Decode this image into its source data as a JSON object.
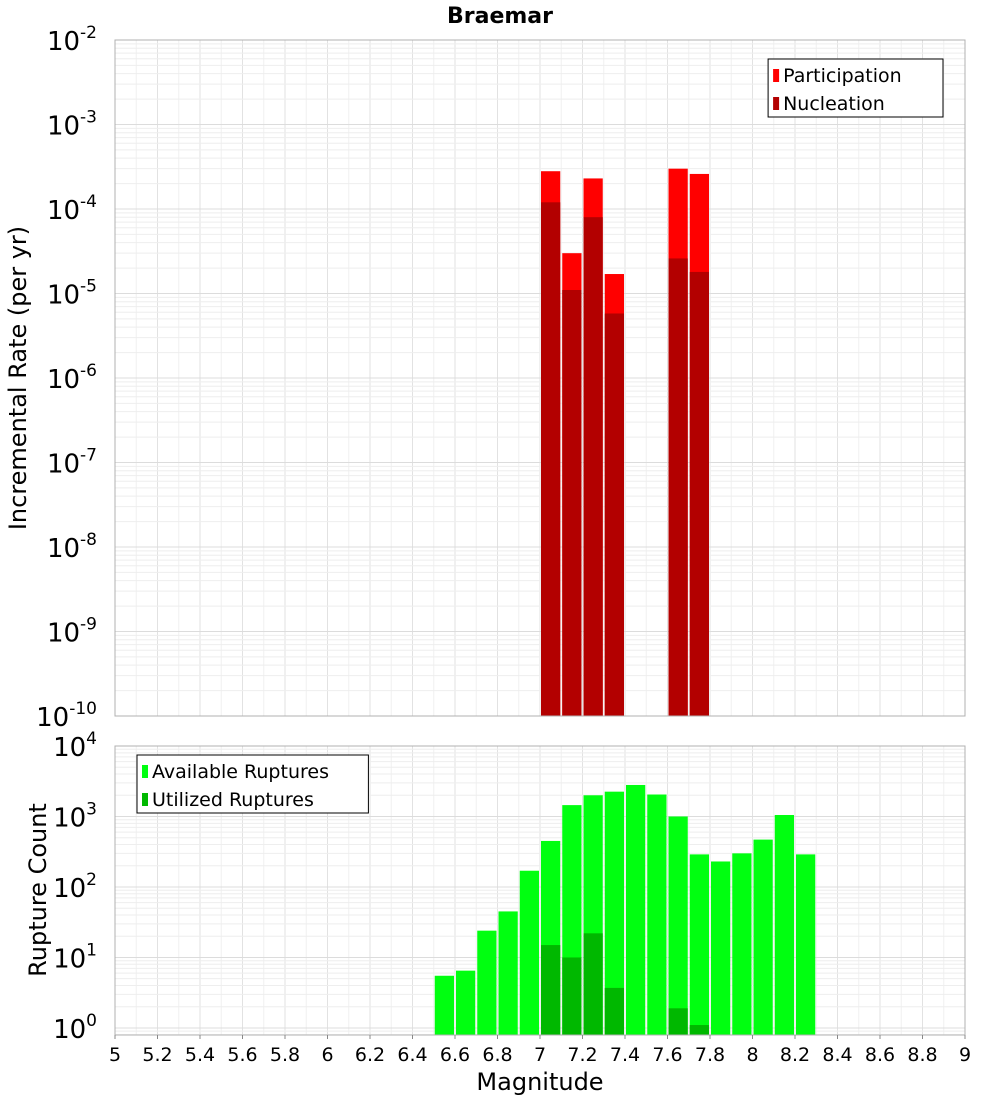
{
  "chart_data": {
    "title": "Braemar",
    "xlabel": "Magnitude",
    "xlim": [
      5,
      9
    ],
    "x_ticks": [
      "5",
      "5.2",
      "5.4",
      "5.6",
      "5.8",
      "6",
      "6.2",
      "6.4",
      "6.6",
      "6.8",
      "7",
      "7.2",
      "7.4",
      "7.6",
      "7.8",
      "8",
      "8.2",
      "8.4",
      "8.6",
      "8.8",
      "9"
    ],
    "bin_width": 0.1,
    "panels": [
      {
        "type": "bar",
        "ylabel": "Incremental Rate (per yr)",
        "y_scale": "log",
        "ylim_exp": [
          -10,
          -2
        ],
        "y_ticks": [
          {
            "base": "10",
            "exp": "-2"
          },
          {
            "base": "10",
            "exp": "-3"
          },
          {
            "base": "10",
            "exp": "-4"
          },
          {
            "base": "10",
            "exp": "-5"
          },
          {
            "base": "10",
            "exp": "-6"
          },
          {
            "base": "10",
            "exp": "-7"
          },
          {
            "base": "10",
            "exp": "-8"
          },
          {
            "base": "10",
            "exp": "-9"
          },
          {
            "base": "10",
            "exp": "-10"
          }
        ],
        "legend_position": "top-right",
        "series": [
          {
            "name": "Participation",
            "color": "#ff0000",
            "x": [
              7.05,
              7.15,
              7.25,
              7.35,
              7.65,
              7.75
            ],
            "values": [
              0.00028,
              3e-05,
              0.00023,
              1.7e-05,
              0.0003,
              0.00026
            ]
          },
          {
            "name": "Nucleation",
            "color": "#b30000",
            "x": [
              7.05,
              7.15,
              7.25,
              7.35,
              7.65,
              7.75
            ],
            "values": [
              0.00012,
              1.1e-05,
              8e-05,
              5.8e-06,
              2.6e-05,
              1.8e-05
            ]
          }
        ]
      },
      {
        "type": "bar",
        "ylabel": "Rupture Count",
        "y_scale": "log",
        "ylim_exp": [
          -0.1,
          4
        ],
        "y_ticks": [
          {
            "base": "10",
            "exp": "4"
          },
          {
            "base": "10",
            "exp": "3"
          },
          {
            "base": "10",
            "exp": "2"
          },
          {
            "base": "10",
            "exp": "1"
          },
          {
            "base": "10",
            "exp": "0"
          }
        ],
        "legend_position": "top-left",
        "series": [
          {
            "name": "Available Ruptures",
            "color": "#00ff10",
            "x": [
              6.55,
              6.65,
              6.75,
              6.85,
              6.95,
              7.05,
              7.15,
              7.25,
              7.35,
              7.45,
              7.55,
              7.65,
              7.75,
              7.85,
              7.95,
              8.05,
              8.15,
              8.25
            ],
            "values": [
              5.5,
              6.5,
              24,
              45,
              170,
              450,
              1450,
              2000,
              2250,
              2800,
              2050,
              1000,
              290,
              230,
              300,
              470,
              1050,
              290
            ]
          },
          {
            "name": "Utilized Ruptures",
            "color": "#00b800",
            "x": [
              7.05,
              7.15,
              7.25,
              7.35,
              7.65,
              7.75
            ],
            "values": [
              15,
              10,
              22,
              3.7,
              1.9,
              1.1
            ]
          }
        ]
      }
    ]
  }
}
